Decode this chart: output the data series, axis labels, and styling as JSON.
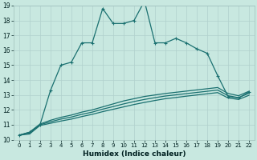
{
  "xlabel": "Humidex (Indice chaleur)",
  "bg_color": "#c8e8e0",
  "grid_color": "#b0d0cc",
  "line_color": "#1a7070",
  "xlim": [
    -0.5,
    22.5
  ],
  "ylim": [
    10,
    19
  ],
  "x_ticks": [
    0,
    1,
    2,
    3,
    4,
    5,
    6,
    7,
    8,
    9,
    10,
    11,
    12,
    13,
    14,
    15,
    16,
    17,
    18,
    19,
    20,
    21,
    22
  ],
  "y_ticks": [
    10,
    11,
    12,
    13,
    14,
    15,
    16,
    17,
    18,
    19
  ],
  "series_main": {
    "x": [
      0,
      1,
      2,
      3,
      4,
      5,
      6,
      7,
      8,
      9,
      10,
      11,
      12,
      13,
      14,
      15,
      16,
      17,
      18,
      19,
      20,
      21,
      22
    ],
    "y": [
      10.3,
      10.5,
      11.0,
      13.3,
      15.0,
      15.2,
      16.5,
      16.5,
      18.8,
      17.8,
      17.8,
      18.0,
      19.3,
      16.5,
      16.5,
      16.8,
      16.5,
      16.1,
      15.8,
      14.3,
      12.9,
      12.8,
      13.2
    ]
  },
  "series_bg": [
    {
      "x": [
        0,
        1,
        2,
        3,
        4,
        5,
        6,
        7,
        8,
        9,
        10,
        11,
        12,
        13,
        14,
        15,
        16,
        17,
        18,
        19,
        20,
        21,
        22
      ],
      "y": [
        10.3,
        10.5,
        11.05,
        11.3,
        11.5,
        11.65,
        11.85,
        12.0,
        12.2,
        12.4,
        12.6,
        12.75,
        12.9,
        13.0,
        13.1,
        13.18,
        13.26,
        13.34,
        13.42,
        13.5,
        13.1,
        12.95,
        13.25
      ]
    },
    {
      "x": [
        0,
        1,
        2,
        3,
        4,
        5,
        6,
        7,
        8,
        9,
        10,
        11,
        12,
        13,
        14,
        15,
        16,
        17,
        18,
        19,
        20,
        21,
        22
      ],
      "y": [
        10.3,
        10.45,
        11.0,
        11.2,
        11.38,
        11.52,
        11.7,
        11.85,
        12.05,
        12.22,
        12.4,
        12.56,
        12.7,
        12.82,
        12.93,
        13.01,
        13.09,
        13.17,
        13.25,
        13.33,
        12.95,
        12.82,
        13.12
      ]
    },
    {
      "x": [
        0,
        1,
        2,
        3,
        4,
        5,
        6,
        7,
        8,
        9,
        10,
        11,
        12,
        13,
        14,
        15,
        16,
        17,
        18,
        19,
        20,
        21,
        22
      ],
      "y": [
        10.3,
        10.38,
        10.95,
        11.1,
        11.25,
        11.38,
        11.55,
        11.7,
        11.88,
        12.04,
        12.2,
        12.36,
        12.5,
        12.63,
        12.75,
        12.83,
        12.92,
        13.0,
        13.08,
        13.16,
        12.8,
        12.7,
        12.98
      ]
    }
  ]
}
